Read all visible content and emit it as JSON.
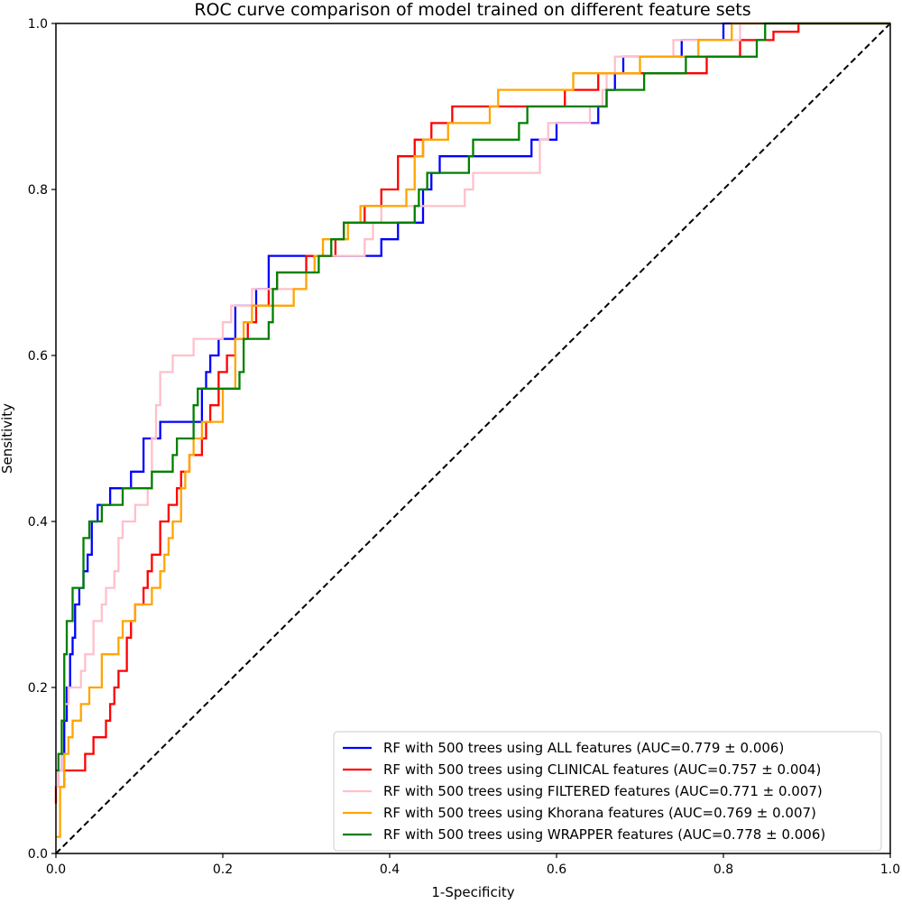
{
  "chart_data": {
    "type": "line",
    "title": "ROC curve comparison of model trained on different feature sets",
    "xlabel": "1-Specificity",
    "ylabel": "Sensitivity",
    "xlim": [
      0.0,
      1.0
    ],
    "ylim": [
      0.0,
      1.0
    ],
    "xticks": [
      "0.0",
      "0.2",
      "0.4",
      "0.6",
      "0.8",
      "1.0"
    ],
    "yticks": [
      "0.0",
      "0.2",
      "0.4",
      "0.6",
      "0.8",
      "1.0"
    ],
    "grid": false,
    "legend_position": "lower-right",
    "reference_line": {
      "x": [
        0,
        1
      ],
      "y": [
        0,
        1
      ],
      "color": "#000000",
      "style": "dashed"
    },
    "series": [
      {
        "name": "RF with 500 trees using ALL features  (AUC=0.779 ± 0.006)",
        "color": "#0000ff",
        "x": [
          0.0,
          0.003,
          0.003,
          0.007,
          0.007,
          0.01,
          0.01,
          0.013,
          0.013,
          0.017,
          0.017,
          0.02,
          0.02,
          0.023,
          0.023,
          0.028,
          0.028,
          0.033,
          0.033,
          0.038,
          0.038,
          0.043,
          0.043,
          0.05,
          0.05,
          0.06,
          0.06,
          0.065,
          0.065,
          0.075,
          0.075,
          0.09,
          0.09,
          0.105,
          0.105,
          0.11,
          0.11,
          0.125,
          0.125,
          0.15,
          0.15,
          0.165,
          0.165,
          0.175,
          0.175,
          0.18,
          0.18,
          0.185,
          0.185,
          0.195,
          0.195,
          0.205,
          0.205,
          0.215,
          0.215,
          0.24,
          0.24,
          0.245,
          0.245,
          0.255,
          0.255,
          0.335,
          0.335,
          0.37,
          0.37,
          0.39,
          0.39,
          0.4,
          0.4,
          0.41,
          0.41,
          0.42,
          0.42,
          0.44,
          0.44,
          0.45,
          0.45,
          0.46,
          0.46,
          0.47,
          0.47,
          0.49,
          0.49,
          0.57,
          0.57,
          0.58,
          0.58,
          0.6,
          0.6,
          0.63,
          0.63,
          0.65,
          0.65,
          0.66,
          0.66,
          0.67,
          0.67,
          0.68,
          0.68,
          0.69,
          0.69,
          0.72,
          0.72,
          0.75,
          0.75,
          0.78,
          0.78,
          0.8,
          0.8,
          0.83,
          0.83,
          0.84,
          0.84,
          0.9,
          1.0
        ],
        "y": [
          0.08,
          0.08,
          0.1,
          0.1,
          0.12,
          0.12,
          0.16,
          0.16,
          0.2,
          0.2,
          0.24,
          0.24,
          0.26,
          0.26,
          0.3,
          0.3,
          0.32,
          0.32,
          0.34,
          0.34,
          0.36,
          0.36,
          0.4,
          0.4,
          0.42,
          0.42,
          0.42,
          0.42,
          0.44,
          0.44,
          0.44,
          0.44,
          0.46,
          0.46,
          0.5,
          0.5,
          0.5,
          0.5,
          0.52,
          0.52,
          0.52,
          0.52,
          0.52,
          0.52,
          0.56,
          0.56,
          0.58,
          0.58,
          0.6,
          0.6,
          0.62,
          0.62,
          0.62,
          0.62,
          0.66,
          0.66,
          0.68,
          0.68,
          0.68,
          0.68,
          0.72,
          0.72,
          0.72,
          0.72,
          0.72,
          0.72,
          0.74,
          0.74,
          0.74,
          0.74,
          0.76,
          0.76,
          0.76,
          0.76,
          0.8,
          0.8,
          0.82,
          0.82,
          0.84,
          0.84,
          0.84,
          0.84,
          0.84,
          0.84,
          0.86,
          0.86,
          0.86,
          0.86,
          0.88,
          0.88,
          0.88,
          0.88,
          0.9,
          0.9,
          0.92,
          0.92,
          0.94,
          0.94,
          0.96,
          0.96,
          0.96,
          0.96,
          0.96,
          0.96,
          0.98,
          0.98,
          0.98,
          0.98,
          1.0,
          1.0,
          1.0,
          1.0,
          1.0,
          1.0,
          1.0
        ]
      },
      {
        "name": "RF with 500 trees using CLINICAL features  (AUC=0.757 ± 0.004)",
        "color": "#ff0000",
        "x": [
          0.0,
          0.0,
          0.01,
          0.01,
          0.035,
          0.035,
          0.045,
          0.045,
          0.06,
          0.06,
          0.065,
          0.065,
          0.07,
          0.07,
          0.075,
          0.075,
          0.085,
          0.085,
          0.09,
          0.09,
          0.095,
          0.095,
          0.1,
          0.1,
          0.105,
          0.105,
          0.11,
          0.11,
          0.115,
          0.115,
          0.125,
          0.125,
          0.135,
          0.135,
          0.145,
          0.145,
          0.15,
          0.15,
          0.16,
          0.16,
          0.165,
          0.165,
          0.175,
          0.175,
          0.18,
          0.18,
          0.185,
          0.185,
          0.195,
          0.195,
          0.205,
          0.205,
          0.215,
          0.215,
          0.225,
          0.225,
          0.23,
          0.23,
          0.24,
          0.24,
          0.255,
          0.255,
          0.265,
          0.265,
          0.28,
          0.28,
          0.29,
          0.29,
          0.3,
          0.3,
          0.335,
          0.335,
          0.345,
          0.345,
          0.37,
          0.37,
          0.39,
          0.39,
          0.4,
          0.4,
          0.41,
          0.41,
          0.44,
          0.44,
          0.44,
          0.43,
          0.43,
          0.45,
          0.45,
          0.475,
          0.475,
          0.48,
          0.48,
          0.55,
          0.55,
          0.61,
          0.61,
          0.65,
          0.65,
          0.72,
          0.72,
          0.78,
          0.78,
          0.82,
          0.82,
          0.83,
          0.83,
          0.86,
          0.86,
          0.89,
          0.89,
          1.0
        ],
        "y": [
          0.06,
          0.08,
          0.08,
          0.1,
          0.1,
          0.12,
          0.12,
          0.14,
          0.14,
          0.16,
          0.16,
          0.18,
          0.18,
          0.2,
          0.2,
          0.22,
          0.22,
          0.26,
          0.26,
          0.28,
          0.28,
          0.3,
          0.3,
          0.3,
          0.3,
          0.32,
          0.32,
          0.34,
          0.34,
          0.36,
          0.36,
          0.4,
          0.4,
          0.42,
          0.42,
          0.44,
          0.44,
          0.46,
          0.46,
          0.48,
          0.48,
          0.48,
          0.48,
          0.5,
          0.5,
          0.52,
          0.52,
          0.54,
          0.54,
          0.58,
          0.58,
          0.6,
          0.6,
          0.62,
          0.62,
          0.62,
          0.62,
          0.64,
          0.64,
          0.66,
          0.66,
          0.68,
          0.68,
          0.7,
          0.7,
          0.7,
          0.7,
          0.7,
          0.7,
          0.72,
          0.72,
          0.74,
          0.74,
          0.76,
          0.76,
          0.78,
          0.78,
          0.8,
          0.8,
          0.8,
          0.8,
          0.84,
          0.84,
          0.86,
          0.84,
          0.84,
          0.86,
          0.86,
          0.88,
          0.88,
          0.9,
          0.9,
          0.9,
          0.9,
          0.9,
          0.9,
          0.92,
          0.92,
          0.94,
          0.94,
          0.94,
          0.94,
          0.96,
          0.96,
          0.98,
          0.98,
          0.98,
          0.98,
          0.99,
          0.99,
          1.0,
          1.0
        ]
      },
      {
        "name": "RF with 500 trees using FILTERED features  (AUC=0.771 ± 0.007)",
        "color": "#ffc0cb",
        "x": [
          0.0,
          0.003,
          0.003,
          0.007,
          0.007,
          0.01,
          0.01,
          0.015,
          0.015,
          0.02,
          0.02,
          0.03,
          0.03,
          0.035,
          0.035,
          0.045,
          0.045,
          0.055,
          0.055,
          0.06,
          0.06,
          0.065,
          0.065,
          0.07,
          0.07,
          0.075,
          0.075,
          0.08,
          0.08,
          0.095,
          0.095,
          0.11,
          0.11,
          0.115,
          0.115,
          0.12,
          0.12,
          0.125,
          0.125,
          0.14,
          0.14,
          0.16,
          0.16,
          0.165,
          0.165,
          0.175,
          0.175,
          0.2,
          0.2,
          0.21,
          0.21,
          0.22,
          0.22,
          0.235,
          0.235,
          0.245,
          0.245,
          0.3,
          0.3,
          0.31,
          0.31,
          0.33,
          0.33,
          0.37,
          0.37,
          0.38,
          0.38,
          0.39,
          0.39,
          0.41,
          0.41,
          0.43,
          0.43,
          0.44,
          0.44,
          0.45,
          0.45,
          0.49,
          0.49,
          0.5,
          0.5,
          0.52,
          0.52,
          0.525,
          0.525,
          0.545,
          0.545,
          0.58,
          0.58,
          0.59,
          0.59,
          0.6,
          0.6,
          0.64,
          0.64,
          0.655,
          0.655,
          0.66,
          0.66,
          0.66,
          0.67,
          0.67,
          0.68,
          0.68,
          0.69,
          0.69,
          0.74,
          0.74,
          0.76,
          0.76,
          0.82,
          0.82,
          0.85,
          0.85,
          1.0
        ],
        "y": [
          0.08,
          0.08,
          0.1,
          0.1,
          0.16,
          0.16,
          0.18,
          0.18,
          0.2,
          0.2,
          0.2,
          0.2,
          0.22,
          0.22,
          0.24,
          0.24,
          0.28,
          0.28,
          0.3,
          0.3,
          0.32,
          0.32,
          0.32,
          0.32,
          0.34,
          0.34,
          0.38,
          0.38,
          0.4,
          0.4,
          0.42,
          0.42,
          0.44,
          0.44,
          0.5,
          0.5,
          0.54,
          0.54,
          0.58,
          0.58,
          0.6,
          0.6,
          0.6,
          0.6,
          0.62,
          0.62,
          0.62,
          0.62,
          0.64,
          0.64,
          0.66,
          0.66,
          0.66,
          0.66,
          0.68,
          0.68,
          0.68,
          0.68,
          0.7,
          0.7,
          0.72,
          0.72,
          0.72,
          0.72,
          0.74,
          0.74,
          0.76,
          0.76,
          0.78,
          0.78,
          0.78,
          0.78,
          0.78,
          0.78,
          0.78,
          0.78,
          0.78,
          0.78,
          0.8,
          0.8,
          0.82,
          0.82,
          0.82,
          0.82,
          0.82,
          0.82,
          0.82,
          0.82,
          0.86,
          0.86,
          0.88,
          0.88,
          0.88,
          0.88,
          0.9,
          0.9,
          0.92,
          0.92,
          0.94,
          0.94,
          0.94,
          0.96,
          0.96,
          0.96,
          0.96,
          0.96,
          0.96,
          0.98,
          0.98,
          0.98,
          0.98,
          1.0,
          1.0,
          1.0,
          1.0
        ]
      },
      {
        "name": "RF with 500 trees using Khorana features  (AUC=0.769 ± 0.007)",
        "color": "#ffa500",
        "x": [
          0.0,
          0.0,
          0.005,
          0.005,
          0.01,
          0.01,
          0.015,
          0.015,
          0.02,
          0.02,
          0.025,
          0.025,
          0.03,
          0.03,
          0.04,
          0.04,
          0.045,
          0.045,
          0.055,
          0.055,
          0.06,
          0.06,
          0.075,
          0.075,
          0.08,
          0.08,
          0.085,
          0.085,
          0.095,
          0.095,
          0.1,
          0.1,
          0.115,
          0.115,
          0.12,
          0.12,
          0.125,
          0.125,
          0.13,
          0.13,
          0.135,
          0.135,
          0.14,
          0.14,
          0.15,
          0.15,
          0.155,
          0.155,
          0.16,
          0.16,
          0.165,
          0.165,
          0.175,
          0.175,
          0.19,
          0.19,
          0.2,
          0.2,
          0.215,
          0.215,
          0.225,
          0.225,
          0.235,
          0.235,
          0.285,
          0.285,
          0.3,
          0.3,
          0.31,
          0.31,
          0.32,
          0.32,
          0.35,
          0.35,
          0.365,
          0.365,
          0.38,
          0.38,
          0.41,
          0.41,
          0.42,
          0.42,
          0.43,
          0.43,
          0.44,
          0.44,
          0.455,
          0.455,
          0.46,
          0.46,
          0.47,
          0.47,
          0.5,
          0.5,
          0.52,
          0.52,
          0.53,
          0.53,
          0.62,
          0.62,
          0.63,
          0.63,
          0.7,
          0.7,
          0.77,
          0.77,
          0.8,
          0.8,
          0.81,
          0.81,
          0.85,
          1.0
        ],
        "y": [
          0.02,
          0.02,
          0.02,
          0.08,
          0.08,
          0.12,
          0.12,
          0.14,
          0.14,
          0.16,
          0.16,
          0.16,
          0.16,
          0.18,
          0.18,
          0.2,
          0.2,
          0.2,
          0.2,
          0.24,
          0.24,
          0.24,
          0.24,
          0.26,
          0.26,
          0.28,
          0.28,
          0.28,
          0.28,
          0.3,
          0.3,
          0.3,
          0.3,
          0.32,
          0.32,
          0.32,
          0.32,
          0.34,
          0.34,
          0.36,
          0.36,
          0.38,
          0.38,
          0.4,
          0.4,
          0.44,
          0.44,
          0.46,
          0.46,
          0.48,
          0.48,
          0.5,
          0.5,
          0.52,
          0.52,
          0.52,
          0.52,
          0.56,
          0.56,
          0.62,
          0.62,
          0.64,
          0.64,
          0.66,
          0.66,
          0.68,
          0.68,
          0.7,
          0.7,
          0.72,
          0.72,
          0.74,
          0.74,
          0.76,
          0.76,
          0.78,
          0.78,
          0.78,
          0.78,
          0.78,
          0.78,
          0.8,
          0.8,
          0.84,
          0.84,
          0.86,
          0.86,
          0.86,
          0.86,
          0.86,
          0.86,
          0.88,
          0.88,
          0.88,
          0.88,
          0.9,
          0.9,
          0.92,
          0.92,
          0.94,
          0.94,
          0.94,
          0.94,
          0.96,
          0.96,
          0.98,
          0.98,
          0.98,
          0.98,
          1.0,
          1.0,
          1.0
        ]
      },
      {
        "name": "RF with 500 trees using WRAPPER features  (AUC=0.778 ± 0.006)",
        "color": "#008000",
        "x": [
          0.0,
          0.003,
          0.003,
          0.007,
          0.007,
          0.01,
          0.01,
          0.013,
          0.013,
          0.02,
          0.02,
          0.023,
          0.023,
          0.033,
          0.033,
          0.04,
          0.04,
          0.05,
          0.05,
          0.055,
          0.055,
          0.07,
          0.07,
          0.08,
          0.08,
          0.1,
          0.1,
          0.115,
          0.115,
          0.125,
          0.125,
          0.135,
          0.135,
          0.14,
          0.14,
          0.145,
          0.145,
          0.16,
          0.16,
          0.165,
          0.165,
          0.17,
          0.17,
          0.2,
          0.2,
          0.21,
          0.21,
          0.22,
          0.22,
          0.225,
          0.225,
          0.24,
          0.24,
          0.255,
          0.255,
          0.26,
          0.26,
          0.265,
          0.265,
          0.315,
          0.315,
          0.33,
          0.33,
          0.345,
          0.345,
          0.375,
          0.375,
          0.395,
          0.395,
          0.41,
          0.41,
          0.43,
          0.43,
          0.435,
          0.435,
          0.445,
          0.445,
          0.455,
          0.455,
          0.495,
          0.495,
          0.5,
          0.5,
          0.525,
          0.525,
          0.555,
          0.555,
          0.565,
          0.565,
          0.66,
          0.66,
          0.705,
          0.705,
          0.755,
          0.755,
          0.8,
          0.8,
          0.84,
          0.84,
          0.85,
          0.85,
          1.0
        ],
        "y": [
          0.1,
          0.1,
          0.12,
          0.12,
          0.16,
          0.16,
          0.24,
          0.24,
          0.28,
          0.28,
          0.32,
          0.32,
          0.32,
          0.32,
          0.38,
          0.38,
          0.4,
          0.4,
          0.4,
          0.4,
          0.42,
          0.42,
          0.42,
          0.42,
          0.44,
          0.44,
          0.44,
          0.44,
          0.46,
          0.46,
          0.46,
          0.46,
          0.46,
          0.46,
          0.48,
          0.48,
          0.5,
          0.5,
          0.5,
          0.5,
          0.54,
          0.54,
          0.56,
          0.56,
          0.56,
          0.56,
          0.56,
          0.56,
          0.58,
          0.58,
          0.62,
          0.62,
          0.62,
          0.62,
          0.64,
          0.64,
          0.68,
          0.68,
          0.7,
          0.7,
          0.72,
          0.72,
          0.74,
          0.74,
          0.76,
          0.76,
          0.76,
          0.76,
          0.76,
          0.76,
          0.76,
          0.76,
          0.78,
          0.78,
          0.8,
          0.8,
          0.82,
          0.82,
          0.82,
          0.82,
          0.84,
          0.84,
          0.86,
          0.86,
          0.86,
          0.86,
          0.88,
          0.88,
          0.9,
          0.9,
          0.92,
          0.92,
          0.94,
          0.94,
          0.96,
          0.96,
          0.96,
          0.96,
          0.98,
          0.98,
          1.0,
          1.0
        ]
      }
    ]
  }
}
